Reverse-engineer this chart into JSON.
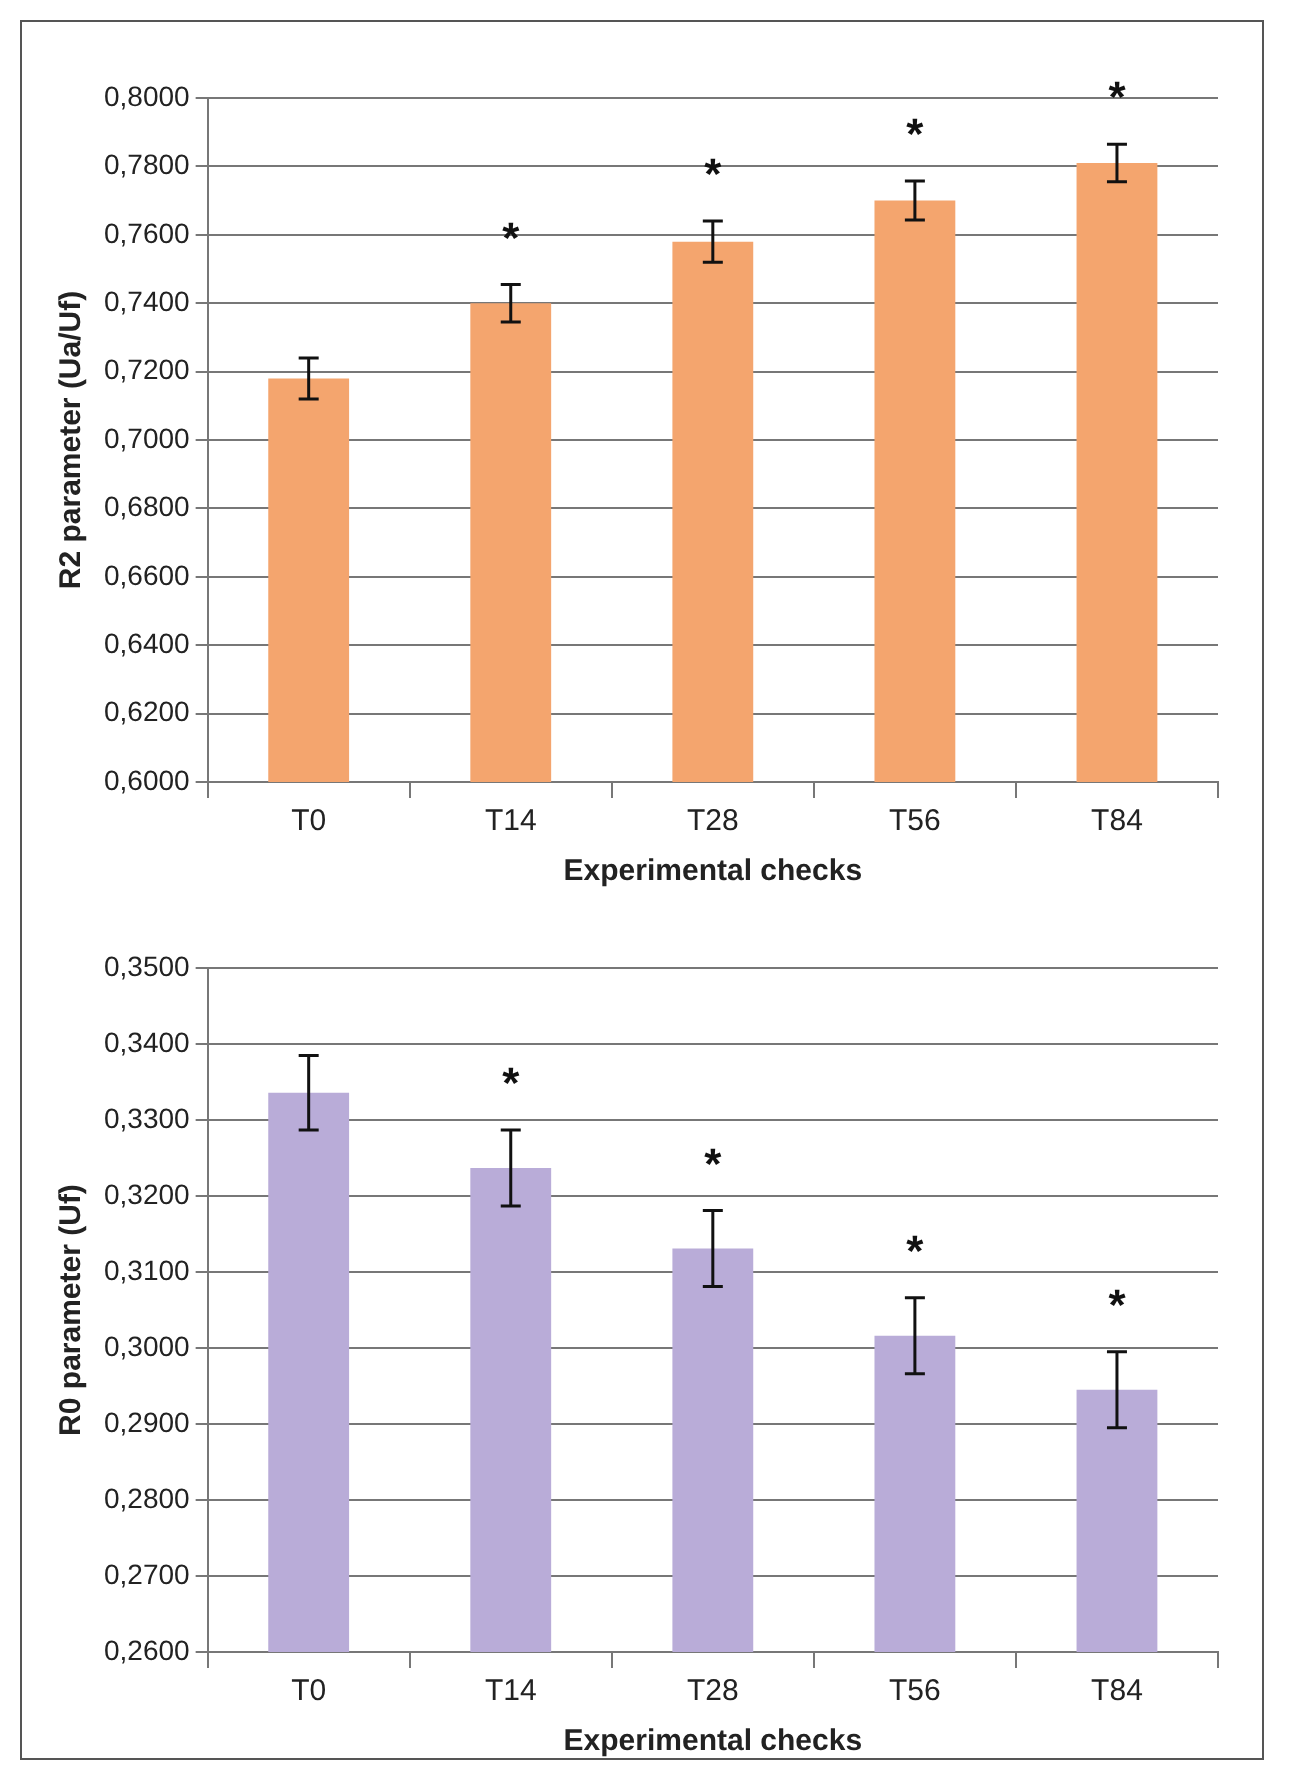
{
  "chart_data": [
    {
      "type": "bar",
      "categories": [
        "T0",
        "T14",
        "T28",
        "T56",
        "T84"
      ],
      "values": [
        0.718,
        0.74,
        0.758,
        0.77,
        0.781
      ],
      "color": "#f4a56e",
      "errors": [
        0.006,
        0.0055,
        0.006,
        0.0057,
        0.0055
      ],
      "xlabel": "Experimental checks",
      "ylabel": "R2 parameter (Ua/Uf)",
      "ylim": [
        0.6,
        0.8
      ],
      "yticks": [
        {
          "value": 0.6,
          "label": "0,6000"
        },
        {
          "value": 0.62,
          "label": "0,6200"
        },
        {
          "value": 0.64,
          "label": "0,6400"
        },
        {
          "value": 0.66,
          "label": "0,6600"
        },
        {
          "value": 0.68,
          "label": "0,6800"
        },
        {
          "value": 0.7,
          "label": "0,7000"
        },
        {
          "value": 0.72,
          "label": "0,7200"
        },
        {
          "value": 0.74,
          "label": "0,7400"
        },
        {
          "value": 0.76,
          "label": "0,7600"
        },
        {
          "value": 0.78,
          "label": "0,7800"
        },
        {
          "value": 0.8,
          "label": "0,8000"
        }
      ],
      "grid": "y",
      "legend": false,
      "annotations": [
        "*",
        "*",
        "*",
        "*"
      ]
    },
    {
      "type": "bar",
      "categories": [
        "T0",
        "T14",
        "T28",
        "T56",
        "T84"
      ],
      "values": [
        0.3336,
        0.3237,
        0.3131,
        0.3016,
        0.2945
      ],
      "color": "#b9acd8",
      "errors": [
        0.0049,
        0.005,
        0.005,
        0.005,
        0.005
      ],
      "xlabel": "Experimental checks",
      "ylabel": "R0 parameter (Uf)",
      "ylim": [
        0.26,
        0.35
      ],
      "yticks": [
        {
          "value": 0.26,
          "label": "0,2600"
        },
        {
          "value": 0.27,
          "label": "0,2700"
        },
        {
          "value": 0.28,
          "label": "0,2800"
        },
        {
          "value": 0.29,
          "label": "0,2900"
        },
        {
          "value": 0.3,
          "label": "0,3000"
        },
        {
          "value": 0.31,
          "label": "0,3100"
        },
        {
          "value": 0.32,
          "label": "0,3200"
        },
        {
          "value": 0.33,
          "label": "0,3300"
        },
        {
          "value": 0.34,
          "label": "0,3400"
        },
        {
          "value": 0.35,
          "label": "0,3500"
        }
      ],
      "grid": "y",
      "legend": false,
      "annotations": [
        "*",
        "*",
        "*",
        "*"
      ]
    }
  ]
}
